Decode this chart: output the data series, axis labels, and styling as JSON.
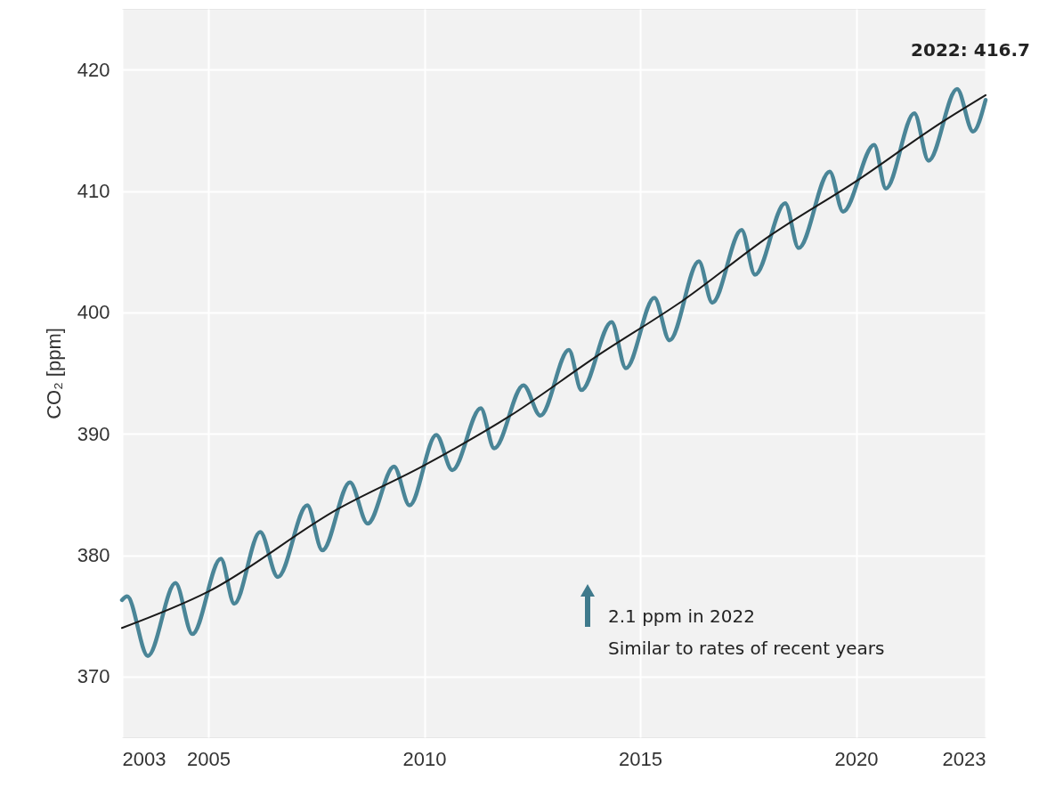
{
  "chart_data": {
    "type": "line",
    "ylabel": "CO₂ [ppm]",
    "series": [
      {
        "color": "#4a8597",
        "x": [
          2003.0,
          2003.12,
          2003.6,
          2004.24,
          2004.63,
          2005.29,
          2005.6,
          2006.2,
          2006.61,
          2007.29,
          2007.64,
          2008.28,
          2008.69,
          2009.3,
          2009.66,
          2010.28,
          2010.65,
          2011.31,
          2011.62,
          2012.3,
          2012.69,
          2013.35,
          2013.64,
          2014.34,
          2014.67,
          2015.33,
          2015.68,
          2016.36,
          2016.67,
          2017.35,
          2017.66,
          2018.36,
          2018.67,
          2019.39,
          2019.7,
          2020.42,
          2020.69,
          2021.35,
          2021.68,
          2022.34,
          2022.71,
          2023.0
        ],
        "values": [
          376.3,
          376.6,
          371.7,
          377.7,
          373.5,
          379.7,
          376.0,
          381.9,
          378.2,
          384.1,
          380.4,
          386.0,
          382.6,
          387.3,
          384.1,
          389.9,
          387.0,
          392.1,
          388.8,
          394.0,
          391.5,
          396.9,
          393.6,
          399.2,
          395.4,
          401.2,
          397.7,
          404.2,
          400.8,
          406.8,
          403.1,
          409.0,
          405.3,
          411.6,
          408.3,
          413.8,
          410.2,
          416.4,
          412.5,
          418.4,
          414.9,
          417.5
        ]
      },
      {
        "color": "#1a1a1a",
        "x": [
          2003,
          2005,
          2008,
          2010,
          2012,
          2014,
          2016,
          2018,
          2020,
          2022,
          2023
        ],
        "values": [
          374.0,
          377.0,
          383.8,
          387.4,
          391.5,
          396.4,
          401.0,
          406.3,
          410.8,
          415.7,
          417.9
        ]
      }
    ],
    "xlim": [
      2003,
      2023
    ],
    "xticks": [
      2003,
      2005,
      2010,
      2015,
      2020,
      2023
    ],
    "ylim": [
      365,
      425
    ],
    "yticks": [
      370,
      380,
      390,
      400,
      410,
      420
    ],
    "grid": true,
    "marker": "none",
    "line_style": "solid",
    "annotations": [
      "2022: 416.7",
      "2.1 ppm in 2022\nSimilar to rates of recent years"
    ]
  }
}
